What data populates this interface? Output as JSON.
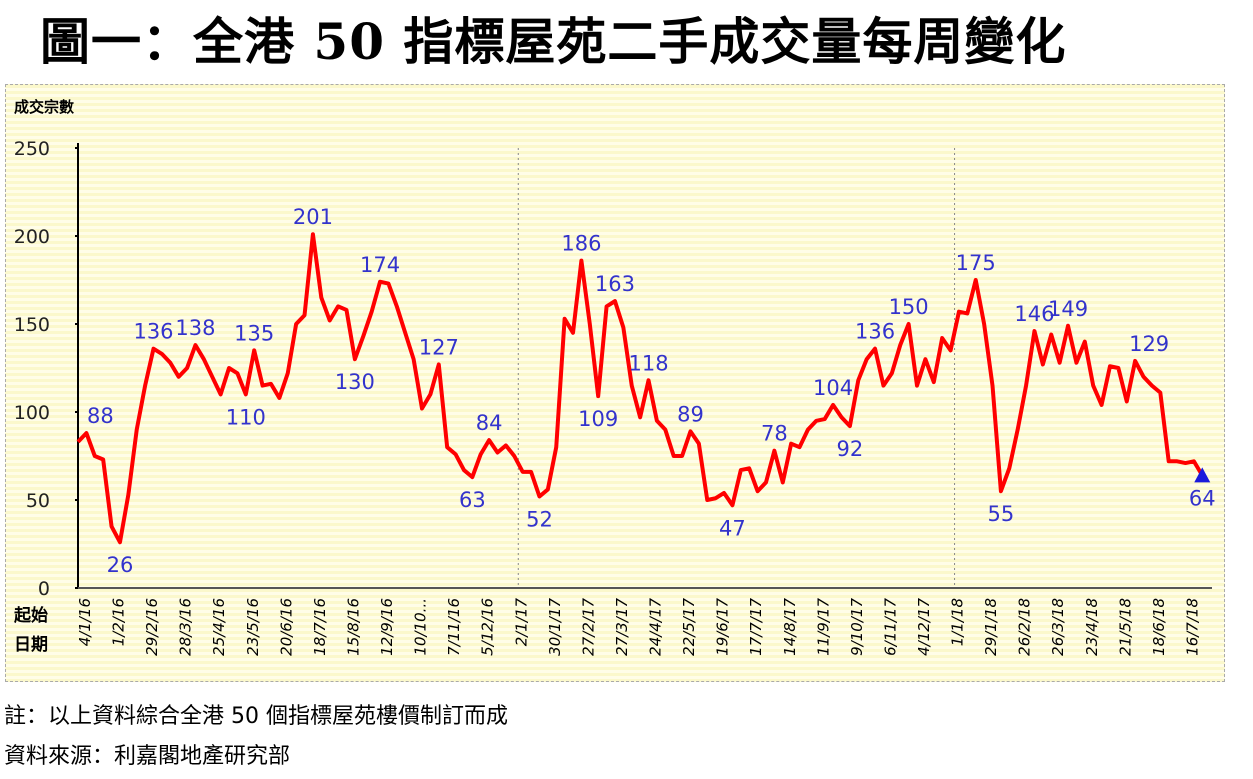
{
  "title": "圖一：全港 50 指標屋苑二手成交量每周變化",
  "notes": {
    "note": "註：以上資料綜合全港 50 個指標屋苑樓價制訂而成",
    "source": "資料來源：利嘉閣地產研究部"
  },
  "chart_data": {
    "type": "line",
    "ylabel": "成交宗數",
    "xlabel": "起始日期",
    "xlabel_lines": [
      "起始",
      "日期"
    ],
    "ylim": [
      0,
      250
    ],
    "yticks": [
      0,
      50,
      100,
      150,
      200,
      250
    ],
    "xtick_labels": [
      "4/1/16",
      "1/2/16",
      "29/2/16",
      "28/3/16",
      "25/4/16",
      "23/5/16",
      "20/6/16",
      "18/7/16",
      "15/8/16",
      "12/9/16",
      "10/10...",
      "7/11/16",
      "5/12/16",
      "2/1/17",
      "30/1/17",
      "27/2/17",
      "27/3/17",
      "24/4/17",
      "22/5/17",
      "19/6/17",
      "17/7/17",
      "14/8/17",
      "11/9/17",
      "9/10/17",
      "6/11/17",
      "4/12/17",
      "1/1/18",
      "29/1/18",
      "26/2/18",
      "26/3/18",
      "23/4/18",
      "21/5/18",
      "18/6/18",
      "16/7/18"
    ],
    "xtick_every_weeks": 4,
    "year_dividers_at_week": [
      52,
      104
    ],
    "series": [
      {
        "name": "成交宗數",
        "color": "#ff0000",
        "values": [
          83,
          88,
          75,
          73,
          35,
          26,
          53,
          90,
          115,
          136,
          133,
          128,
          120,
          125,
          138,
          130,
          120,
          110,
          125,
          122,
          110,
          135,
          115,
          116,
          108,
          122,
          150,
          155,
          201,
          165,
          152,
          160,
          158,
          130,
          143,
          157,
          174,
          173,
          160,
          145,
          130,
          102,
          110,
          127,
          80,
          76,
          67,
          63,
          76,
          84,
          77,
          81,
          75,
          66,
          66,
          52,
          56,
          80,
          153,
          145,
          186,
          150,
          109,
          160,
          163,
          148,
          115,
          97,
          118,
          95,
          90,
          75,
          75,
          89,
          82,
          50,
          51,
          54,
          47,
          67,
          68,
          55,
          60,
          78,
          60,
          82,
          80,
          90,
          95,
          96,
          104,
          97,
          92,
          118,
          130,
          136,
          115,
          122,
          138,
          150,
          115,
          130,
          117,
          142,
          135,
          157,
          156,
          175,
          150,
          115,
          55,
          68,
          90,
          115,
          146,
          127,
          144,
          128,
          149,
          128,
          140,
          115,
          104,
          126,
          125,
          106,
          129,
          120,
          115,
          111,
          72,
          72,
          71,
          72,
          64
        ]
      }
    ],
    "annotations": [
      {
        "index": 1,
        "text": "88",
        "pos": "above"
      },
      {
        "index": 5,
        "text": "26",
        "pos": "below"
      },
      {
        "index": 9,
        "text": "136",
        "pos": "above"
      },
      {
        "index": 14,
        "text": "138",
        "pos": "above"
      },
      {
        "index": 20,
        "text": "110",
        "pos": "below"
      },
      {
        "index": 21,
        "text": "135",
        "pos": "above"
      },
      {
        "index": 28,
        "text": "201",
        "pos": "above"
      },
      {
        "index": 33,
        "text": "130",
        "pos": "below"
      },
      {
        "index": 36,
        "text": "174",
        "pos": "above"
      },
      {
        "index": 43,
        "text": "127",
        "pos": "above"
      },
      {
        "index": 47,
        "text": "63",
        "pos": "below"
      },
      {
        "index": 49,
        "text": "84",
        "pos": "above"
      },
      {
        "index": 55,
        "text": "52",
        "pos": "below"
      },
      {
        "index": 60,
        "text": "186",
        "pos": "above"
      },
      {
        "index": 62,
        "text": "109",
        "pos": "below"
      },
      {
        "index": 64,
        "text": "163",
        "pos": "above"
      },
      {
        "index": 68,
        "text": "118",
        "pos": "above"
      },
      {
        "index": 73,
        "text": "89",
        "pos": "above"
      },
      {
        "index": 78,
        "text": "47",
        "pos": "below"
      },
      {
        "index": 83,
        "text": "78",
        "pos": "above"
      },
      {
        "index": 90,
        "text": "104",
        "pos": "above"
      },
      {
        "index": 92,
        "text": "92",
        "pos": "below"
      },
      {
        "index": 95,
        "text": "136",
        "pos": "above"
      },
      {
        "index": 99,
        "text": "150",
        "pos": "above"
      },
      {
        "index": 107,
        "text": "175",
        "pos": "above"
      },
      {
        "index": 110,
        "text": "55",
        "pos": "below"
      },
      {
        "index": 114,
        "text": "146",
        "pos": "above"
      },
      {
        "index": 118,
        "text": "149",
        "pos": "above"
      },
      {
        "index": 126,
        "text": "129",
        "pos": "above"
      },
      {
        "index": 134,
        "text": "64",
        "pos": "below"
      }
    ],
    "annotation_color": "#3333cc",
    "last_marker": "triangle",
    "last_marker_color": "#1a1adc"
  }
}
